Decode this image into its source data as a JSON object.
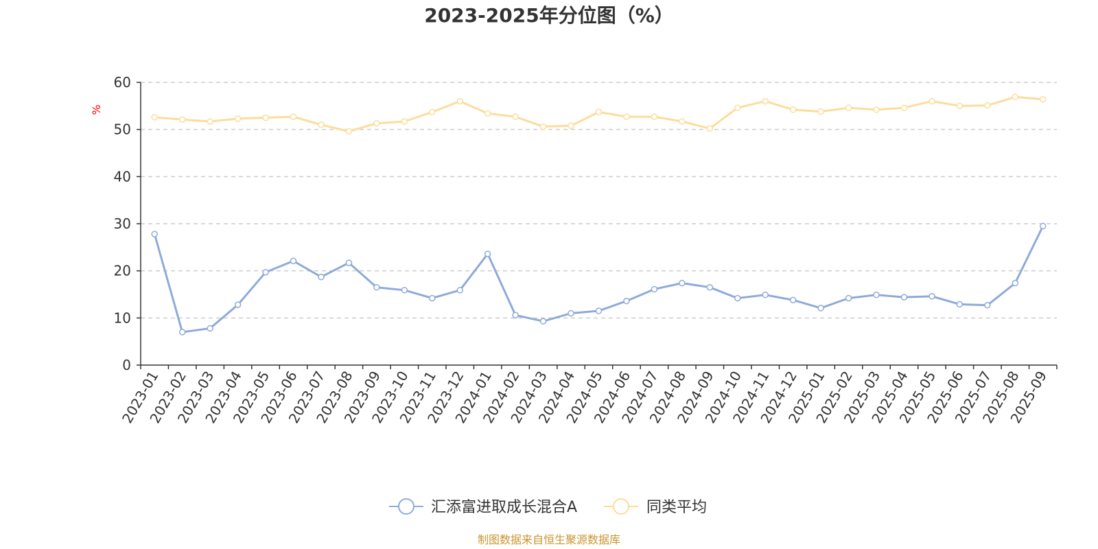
{
  "colors": {
    "series1": "#8eaadb",
    "series2": "#fddc9b",
    "unit": "#ff0000",
    "source": "#c8962f",
    "grid": "#cccccc",
    "axis": "#333333"
  },
  "source_text": "制图数据来自恒生聚源数据库",
  "chart_data": {
    "type": "line",
    "title": "2023-2025年分位图（%）",
    "ylabel": "%",
    "ylim": [
      0,
      60
    ],
    "yticks": [
      0,
      10,
      20,
      30,
      40,
      50,
      60
    ],
    "grid": "horizontal-dashed",
    "legend_position": "bottom-center",
    "categories": [
      "2023-01",
      "2023-02",
      "2023-03",
      "2023-04",
      "2023-05",
      "2023-06",
      "2023-07",
      "2023-08",
      "2023-09",
      "2023-10",
      "2023-11",
      "2023-12",
      "2024-01",
      "2024-02",
      "2024-03",
      "2024-04",
      "2024-05",
      "2024-06",
      "2024-07",
      "2024-08",
      "2024-09",
      "2024-10",
      "2024-11",
      "2024-12",
      "2025-01",
      "2025-02",
      "2025-03",
      "2025-04",
      "2025-05",
      "2025-06",
      "2025-07",
      "2025-08",
      "2025-09"
    ],
    "series": [
      {
        "name": "汇添富进取成长混合A",
        "values": [
          27.8,
          7.0,
          7.8,
          12.8,
          19.7,
          22.1,
          18.7,
          21.7,
          16.5,
          15.9,
          14.2,
          15.9,
          23.6,
          10.6,
          9.3,
          11.0,
          11.5,
          13.6,
          16.1,
          17.4,
          16.5,
          14.2,
          14.9,
          13.8,
          12.1,
          14.2,
          14.9,
          14.4,
          14.6,
          12.9,
          12.7,
          17.4,
          29.5
        ]
      },
      {
        "name": "同类平均",
        "values": [
          52.6,
          52.1,
          51.7,
          52.3,
          52.5,
          52.7,
          51.0,
          49.6,
          51.3,
          51.7,
          53.7,
          56.0,
          53.4,
          52.7,
          50.6,
          50.8,
          53.7,
          52.7,
          52.7,
          51.7,
          50.2,
          54.6,
          56.0,
          54.2,
          53.8,
          54.6,
          54.2,
          54.6,
          56.0,
          55.0,
          55.1,
          56.9,
          56.4
        ]
      }
    ]
  }
}
